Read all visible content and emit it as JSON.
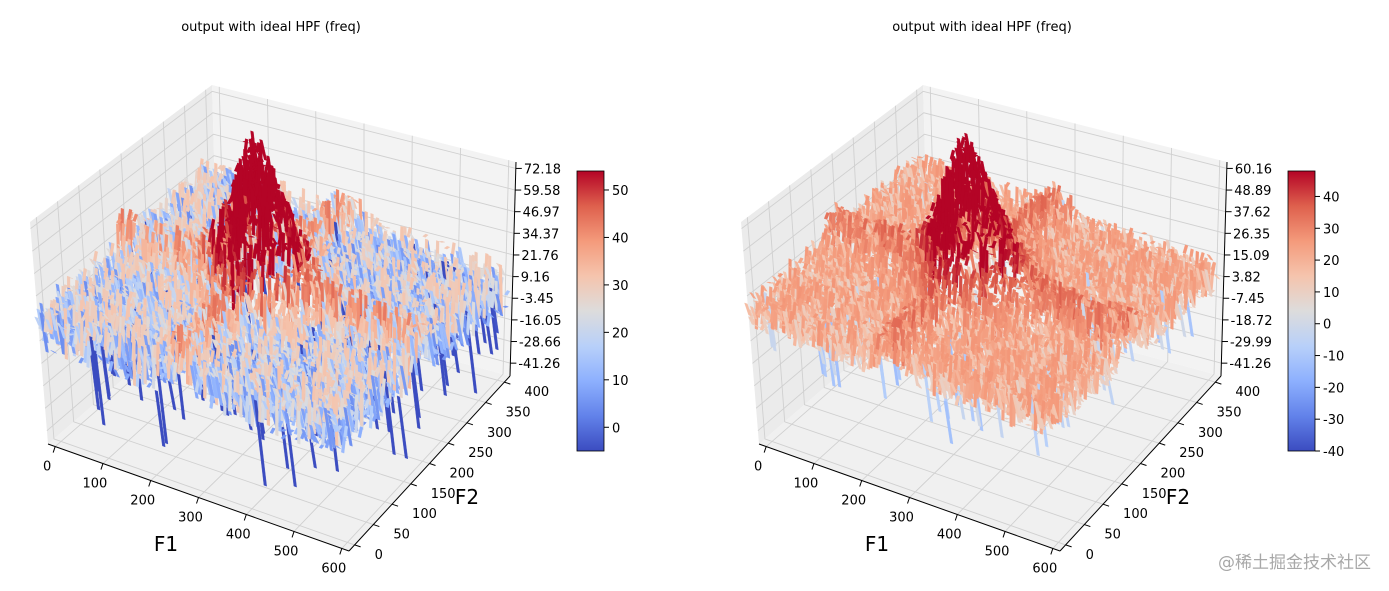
{
  "chart_data": [
    {
      "type": "surface3d",
      "title": "output with ideal HPF (freq)",
      "xlabel": "F1",
      "ylabel": "F2",
      "xticks": [
        "0",
        "100",
        "200",
        "300",
        "400",
        "500",
        "600"
      ],
      "yticks": [
        "0",
        "50",
        "100",
        "150",
        "200",
        "250",
        "300",
        "350",
        "400"
      ],
      "zticks": [
        "-41.26",
        "-28.66",
        "-16.05",
        "-3.45",
        "9.16",
        "21.76",
        "34.37",
        "46.97",
        "59.58",
        "72.18"
      ],
      "zlim": [
        -41.26,
        72.18
      ],
      "colormap": "coolwarm",
      "colorbar_range": [
        -5,
        54
      ],
      "colorbar_ticks": [
        "0",
        "10",
        "20",
        "30",
        "40",
        "50"
      ],
      "surface": {
        "base_level": 18,
        "peak": 60,
        "peak_at": [
          300,
          200
        ],
        "cross_ridge": 12,
        "noise": 14
      }
    },
    {
      "type": "surface3d",
      "title": "output with ideal HPF (freq)",
      "xlabel": "F1",
      "ylabel": "F2",
      "xticks": [
        "0",
        "100",
        "200",
        "300",
        "400",
        "500",
        "600"
      ],
      "yticks": [
        "0",
        "50",
        "100",
        "150",
        "200",
        "250",
        "300",
        "350",
        "400"
      ],
      "zticks": [
        "-41.26",
        "-29.99",
        "-18.72",
        "-7.45",
        "3.82",
        "15.09",
        "26.35",
        "37.62",
        "48.89",
        "60.16"
      ],
      "zlim": [
        -41.26,
        60.16
      ],
      "colormap": "coolwarm",
      "colorbar_range": [
        -40,
        48
      ],
      "colorbar_ticks": [
        "-40",
        "-30",
        "-20",
        "-10",
        "0",
        "10",
        "20",
        "30",
        "40"
      ],
      "surface": {
        "base_level": 18,
        "peak": 50,
        "peak_at": [
          300,
          200
        ],
        "cross_ridge": 10,
        "noise": 9
      }
    }
  ],
  "watermark": "@稀土掘金技术社区"
}
